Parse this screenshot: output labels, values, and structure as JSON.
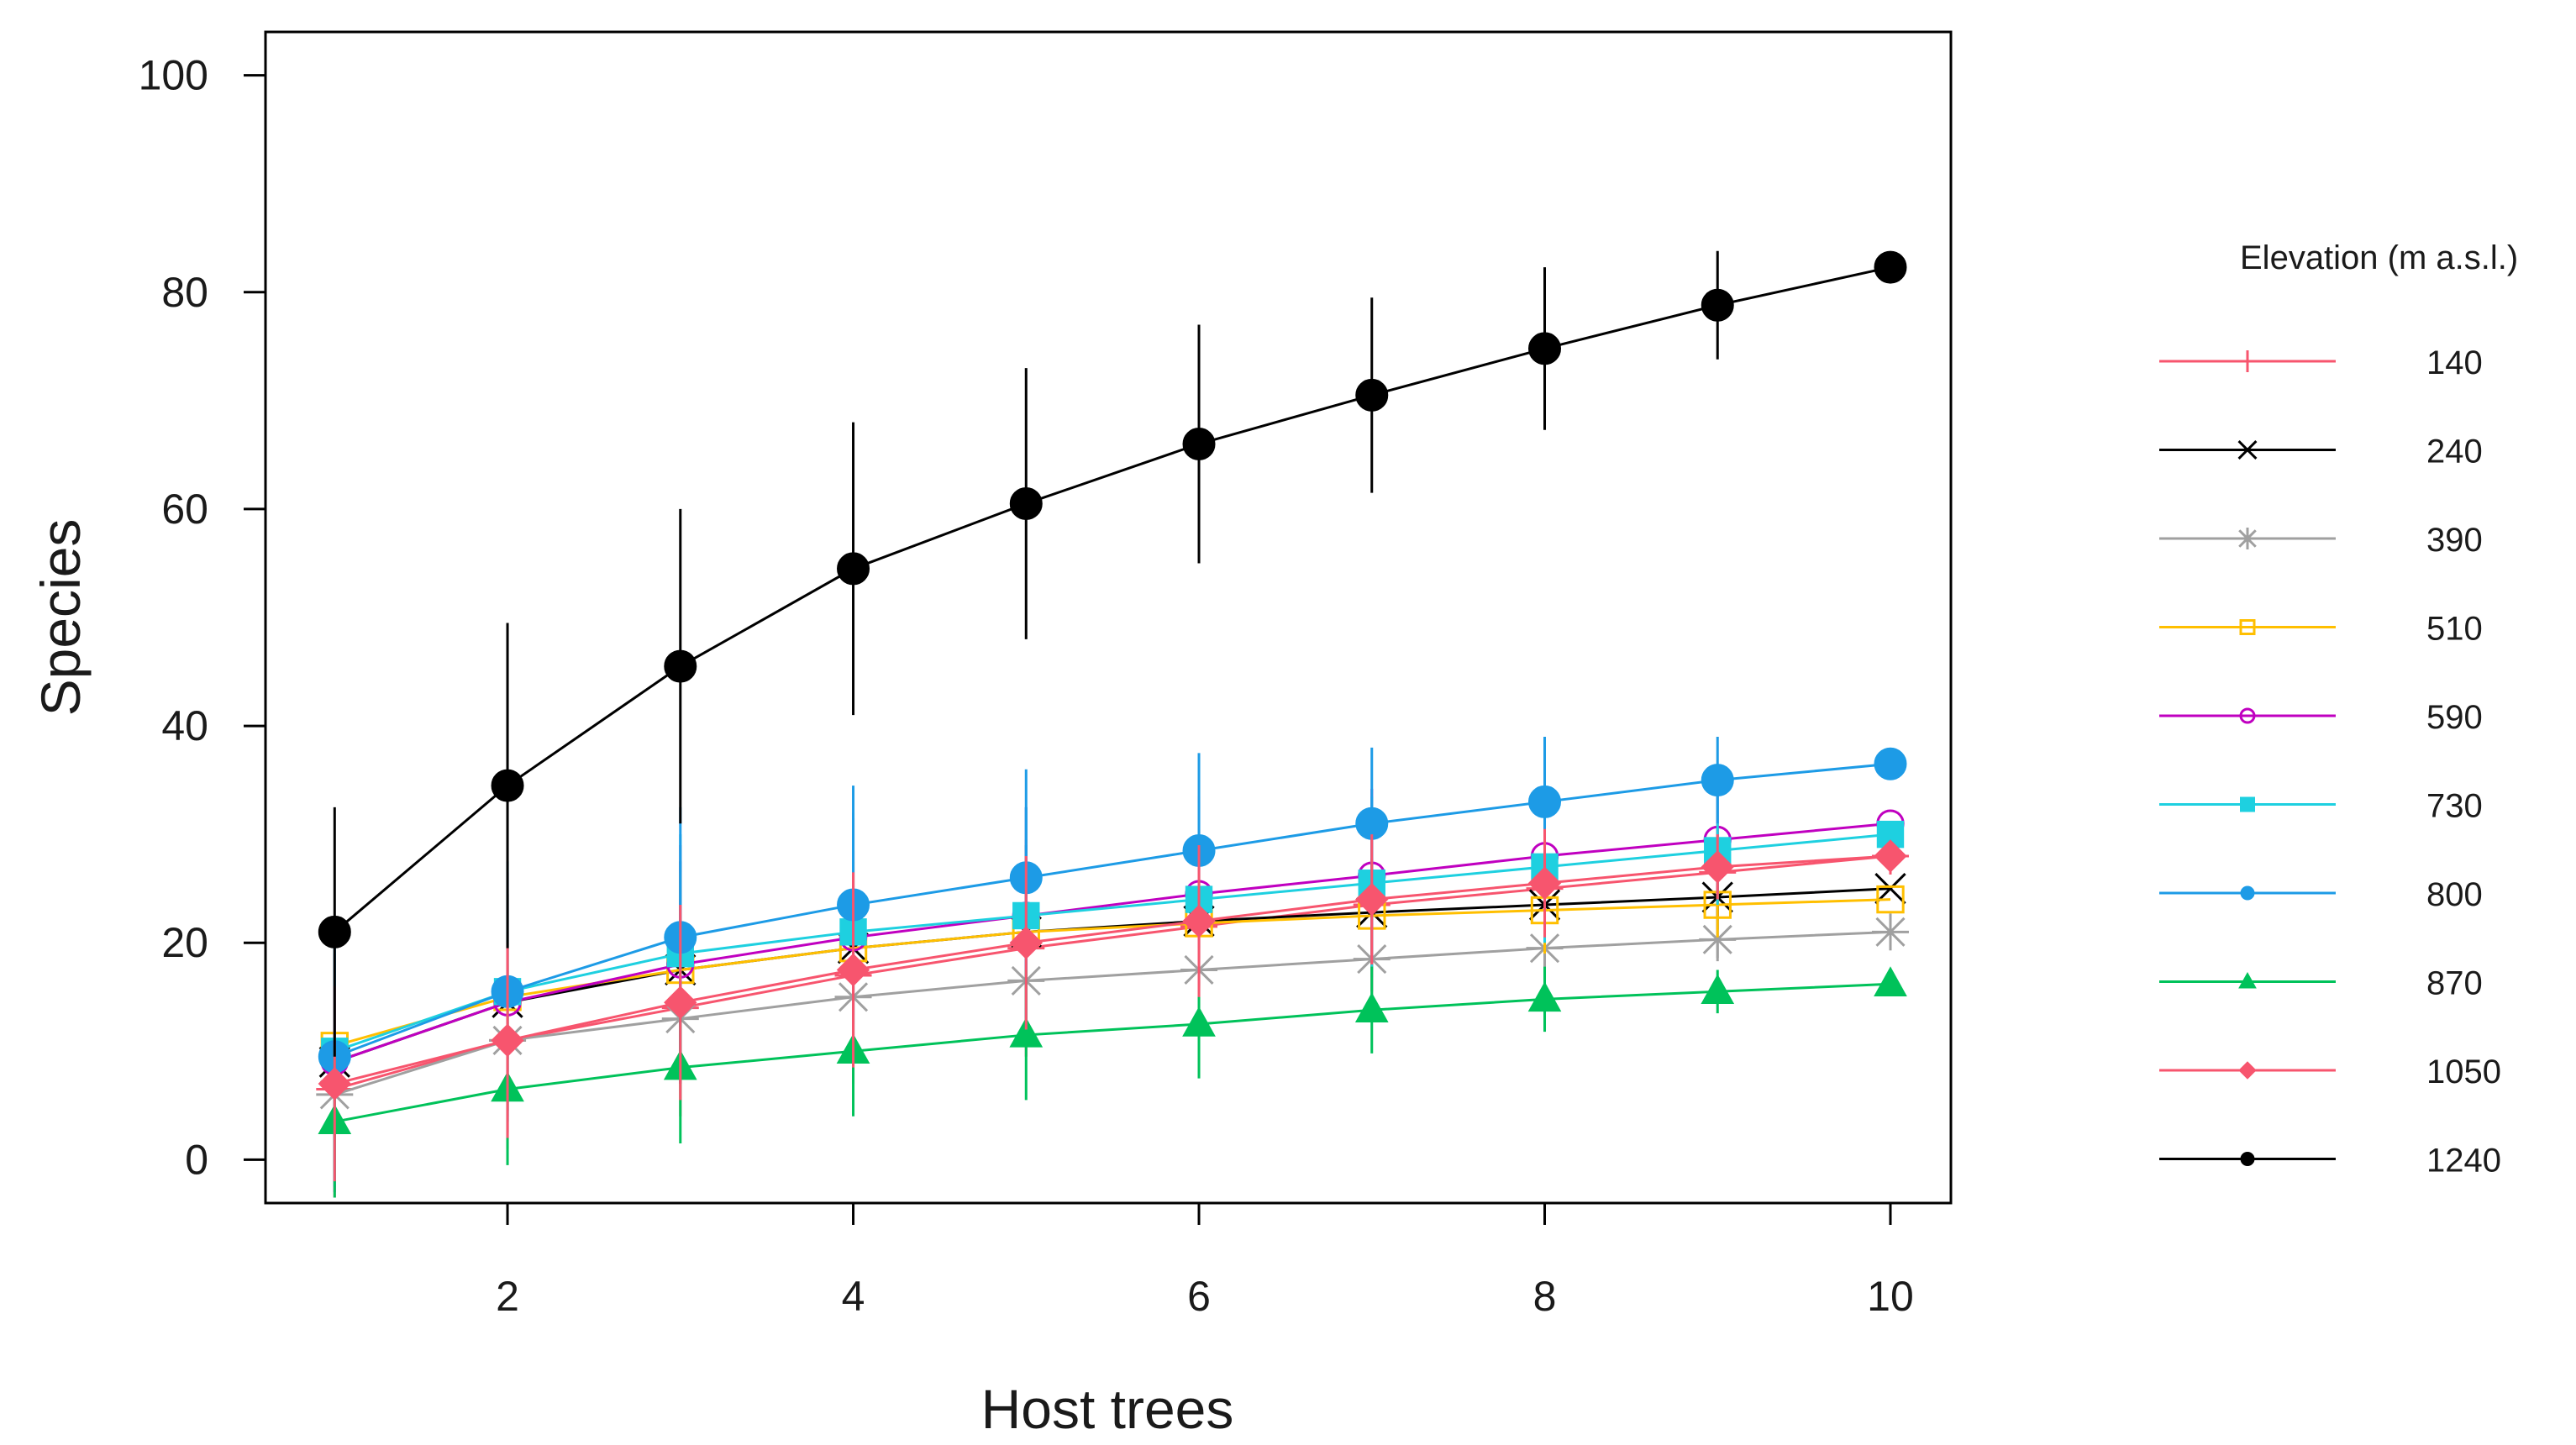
{
  "chart_data": {
    "type": "line",
    "title": "",
    "xlabel": "Host trees",
    "ylabel": "Species",
    "xlim": [
      0.6,
      10.35
    ],
    "ylim": [
      -4,
      104
    ],
    "xticks": [
      2,
      4,
      6,
      8,
      10
    ],
    "yticks": [
      0,
      20,
      40,
      60,
      80,
      100
    ],
    "grid": false,
    "legend_title": "Elevation (m a.s.l.)",
    "legend_position": "right",
    "x": [
      1,
      2,
      3,
      4,
      5,
      6,
      7,
      8,
      9,
      10
    ],
    "series": [
      {
        "name": "140",
        "color": "#f7556e",
        "marker": "plus",
        "values": [
          6.5,
          11,
          14,
          17,
          19.5,
          21.5,
          23.5,
          25,
          26.5,
          28
        ],
        "err": [
          10,
          10,
          10,
          10,
          10,
          9,
          8,
          6,
          4,
          0
        ]
      },
      {
        "name": "240",
        "color": "#000000",
        "marker": "cross",
        "values": [
          9,
          14.5,
          17.5,
          19.5,
          21,
          22,
          22.8,
          23.5,
          24.2,
          25
        ],
        "err": [
          10,
          10,
          10,
          9,
          8,
          6,
          5,
          4,
          3,
          0
        ]
      },
      {
        "name": "390",
        "color": "#a0a0a0",
        "marker": "asterisk",
        "values": [
          6,
          11,
          13,
          15,
          16.5,
          17.5,
          18.5,
          19.5,
          20.3,
          21
        ],
        "err": [
          8,
          7,
          6,
          6,
          5,
          5,
          4,
          3,
          2,
          0
        ]
      },
      {
        "name": "510",
        "color": "#ffbf00",
        "marker": "square-open",
        "values": [
          10.5,
          15,
          17.5,
          19.5,
          21,
          21.8,
          22.5,
          23,
          23.5,
          24
        ],
        "err": [
          10,
          10,
          9,
          8,
          7,
          6,
          5,
          4,
          3,
          0
        ]
      },
      {
        "name": "590",
        "color": "#c000c0",
        "marker": "circle-open",
        "values": [
          9,
          14.5,
          18,
          20.5,
          22.5,
          24.5,
          26.2,
          28,
          29.5,
          31
        ],
        "err": [
          12,
          12,
          11,
          11,
          10,
          9,
          8,
          7,
          5,
          0
        ]
      },
      {
        "name": "730",
        "color": "#1ed0e0",
        "marker": "square-filled",
        "values": [
          10,
          15.5,
          19,
          21,
          22.5,
          24,
          25.5,
          27,
          28.5,
          30
        ],
        "err": [
          12,
          12,
          11,
          11,
          10,
          9,
          8,
          7,
          5,
          0
        ]
      },
      {
        "name": "800",
        "color": "#1d9be6",
        "marker": "circle-filled",
        "values": [
          9.5,
          15.5,
          20.5,
          23.5,
          26,
          28.5,
          31,
          33,
          35,
          36.5
        ],
        "err": [
          12,
          12,
          12,
          11,
          10,
          9,
          7,
          6,
          4,
          0
        ]
      },
      {
        "name": "870",
        "color": "#00c25a",
        "marker": "triangle",
        "values": [
          3.5,
          6.5,
          8.5,
          10,
          11.5,
          12.5,
          13.8,
          14.8,
          15.5,
          16.2
        ],
        "err": [
          7,
          7,
          7,
          6,
          6,
          5,
          4,
          3,
          2,
          0
        ]
      },
      {
        "name": "1050",
        "color": "#f7556e",
        "marker": "diamond",
        "values": [
          7,
          11,
          14.5,
          17.5,
          20,
          22,
          24,
          25.5,
          27,
          28
        ],
        "err": [
          9,
          9,
          9,
          9,
          8,
          7,
          6,
          5,
          3,
          0
        ]
      },
      {
        "name": "1240",
        "color": "#000000",
        "marker": "circle-filled",
        "values": [
          21,
          34.5,
          45.5,
          54.5,
          60.5,
          66,
          70.5,
          74.8,
          78.8,
          82.3
        ],
        "err": [
          11.5,
          15,
          14.5,
          13.5,
          12.5,
          11,
          9,
          7.5,
          5,
          0
        ]
      }
    ]
  }
}
